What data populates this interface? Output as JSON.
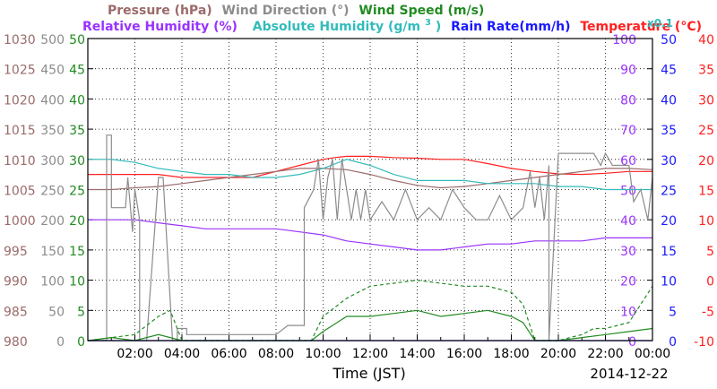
{
  "header": {
    "row1": [
      {
        "text": "Pressure (hPa)",
        "color": "#9c6a6a"
      },
      {
        "text": "Wind Direction (°)",
        "color": "#8c8c8c"
      },
      {
        "text": "Wind Speed (m/s)",
        "color": "#228b22"
      }
    ],
    "row2": [
      {
        "text": "Relative Humidity (%)",
        "color": "#9933ff"
      },
      {
        "text": "Absolute Humidity (g/m",
        "color": "#33bbbb"
      },
      {
        "text": "Rain Rate(mm/h)",
        "color": "#1a1aff"
      },
      {
        "text": "Temperature (°C)",
        "color": "#ff2020"
      }
    ],
    "abs_sup": "3",
    "abs_close": ")",
    "x01": "x0.1"
  },
  "chart_data": {
    "type": "line",
    "xlabel": "Time (JST)",
    "date_label": "2014-12-22",
    "x_ticks": [
      "02:00",
      "04:00",
      "06:00",
      "08:00",
      "10:00",
      "12:00",
      "14:00",
      "16:00",
      "18:00",
      "20:00",
      "22:00",
      "00:00"
    ],
    "xlim": [
      0,
      24
    ],
    "y_axes": [
      {
        "name": "Pressure (hPa)",
        "color": "#9c6a6a",
        "side": "left",
        "ylim": [
          980,
          1030
        ],
        "ticks": [
          "980",
          "985",
          "990",
          "995",
          "1000",
          "1005",
          "1010",
          "1015",
          "1020",
          "1025",
          "1030"
        ]
      },
      {
        "name": "Wind Direction (°)",
        "color": "#8c8c8c",
        "side": "left",
        "ylim": [
          0,
          500
        ],
        "ticks": [
          "0",
          "50",
          "100",
          "150",
          "200",
          "250",
          "300",
          "350",
          "400",
          "450",
          "500"
        ]
      },
      {
        "name": "Wind Speed (m/s)",
        "color": "#228b22",
        "side": "left",
        "ylim": [
          0,
          50
        ],
        "ticks": [
          "0",
          "5",
          "10",
          "15",
          "20",
          "25",
          "30",
          "35",
          "40",
          "45",
          "50"
        ]
      },
      {
        "name": "Relative Humidity (%)",
        "color": "#9933ff",
        "side": "right",
        "ylim": [
          0,
          100
        ],
        "ticks": [
          "0",
          "10",
          "20",
          "30",
          "40",
          "50",
          "60",
          "70",
          "80",
          "90",
          "100"
        ]
      },
      {
        "name": "Rain Rate(mm/h)",
        "color": "#1a1aff",
        "side": "right",
        "ylim": [
          0,
          50
        ],
        "ticks": [
          "0",
          "5",
          "10",
          "15",
          "20",
          "25",
          "30",
          "35",
          "40",
          "45",
          "50"
        ]
      },
      {
        "name": "Temperature (°C)",
        "color": "#ff2020",
        "side": "right",
        "ylim": [
          -10,
          40
        ],
        "ticks": [
          "-10",
          "-5",
          "0",
          "5",
          "10",
          "15",
          "20",
          "25",
          "30",
          "35",
          "40"
        ]
      }
    ],
    "grid": "dotted",
    "series": [
      {
        "name": "Temperature (°C)",
        "color": "#ff2020",
        "axis": 5,
        "style": "solid",
        "x": [
          0,
          1,
          2,
          3,
          4,
          5,
          6,
          7,
          8,
          9,
          10,
          10.5,
          11,
          12,
          13,
          14,
          15,
          16,
          17,
          18,
          19,
          20,
          21,
          22,
          23,
          24
        ],
        "y": [
          17.5,
          17.5,
          17.5,
          17.5,
          17.0,
          17.0,
          17.0,
          17.0,
          18.0,
          19.0,
          20.0,
          20.3,
          20.5,
          20.5,
          20.3,
          20.2,
          20.0,
          20.0,
          19.3,
          18.5,
          18.0,
          17.6,
          17.5,
          17.7,
          18.0,
          18.0
        ]
      },
      {
        "name": "Pressure (hPa)",
        "color": "#9c6a6a",
        "axis": 0,
        "style": "solid",
        "x": [
          0,
          1,
          2,
          3,
          4,
          5,
          6,
          7,
          8,
          9,
          10,
          11,
          12,
          13,
          14,
          15,
          16,
          17,
          18,
          19,
          20,
          21,
          22,
          23,
          24
        ],
        "y": [
          1005.0,
          1005.0,
          1005.3,
          1005.5,
          1006.0,
          1006.5,
          1007.0,
          1007.5,
          1008.0,
          1008.5,
          1008.5,
          1008.3,
          1007.5,
          1006.5,
          1005.7,
          1005.3,
          1005.5,
          1006.0,
          1006.5,
          1007.0,
          1007.5,
          1008.0,
          1008.5,
          1008.5,
          1008.3
        ]
      },
      {
        "name": "Absolute Humidity (g/m3) x0.1",
        "color": "#33bbbb",
        "axis": 3,
        "style": "solid",
        "x": [
          0,
          1,
          2,
          3,
          4,
          5,
          6,
          7,
          8,
          9,
          10,
          11,
          12,
          13,
          14,
          15,
          16,
          17,
          18,
          19,
          20,
          21,
          22,
          23,
          24
        ],
        "y": [
          60,
          60,
          59,
          57,
          56,
          55,
          55,
          54,
          54,
          55,
          57,
          60,
          58,
          55,
          53,
          53,
          53,
          52,
          52,
          52,
          51,
          51,
          50,
          50,
          50
        ]
      },
      {
        "name": "Relative Humidity (%)",
        "color": "#9933ff",
        "axis": 3,
        "style": "solid",
        "x": [
          0,
          1,
          2,
          3,
          4,
          5,
          6,
          7,
          8,
          9,
          10,
          11,
          12,
          13,
          14,
          15,
          16,
          17,
          18,
          19,
          20,
          21,
          22,
          23,
          24
        ],
        "y": [
          40,
          40,
          40,
          39,
          38,
          37,
          37,
          37,
          37,
          36,
          35,
          33,
          32,
          31,
          30,
          30,
          31,
          32,
          32,
          33,
          33,
          33,
          34,
          34,
          34
        ]
      },
      {
        "name": "Wind Direction (°)",
        "color": "#8c8c8c",
        "axis": 1,
        "style": "solid",
        "x": [
          0,
          0.8,
          0.8,
          1.0,
          1.0,
          1.6,
          1.7,
          1.9,
          2.0,
          2.2,
          2.2,
          2.5,
          3.0,
          3.2,
          3.6,
          3.8,
          3.8,
          4.2,
          4.2,
          5.0,
          6.0,
          7.0,
          8.0,
          8.5,
          9.0,
          9.2,
          9.2,
          9.6,
          9.8,
          10.0,
          10.2,
          10.4,
          10.6,
          10.8,
          11.0,
          11.2,
          11.4,
          11.6,
          11.8,
          12.0,
          12.5,
          13.0,
          13.5,
          14.0,
          14.5,
          15.0,
          15.5,
          16.0,
          16.5,
          17.0,
          17.5,
          18.0,
          18.5,
          18.8,
          19.0,
          19.2,
          19.4,
          19.6,
          19.6,
          20.0,
          20.5,
          21.0,
          21.5,
          21.8,
          22.0,
          22.3,
          22.5,
          23.0,
          23.2,
          23.5,
          23.8,
          24.0
        ],
        "y": [
          0,
          0,
          340,
          340,
          220,
          220,
          270,
          180,
          250,
          200,
          0,
          0,
          270,
          270,
          0,
          0,
          20,
          20,
          10,
          10,
          10,
          10,
          10,
          25,
          25,
          25,
          220,
          250,
          300,
          200,
          270,
          300,
          200,
          300,
          250,
          200,
          250,
          200,
          250,
          200,
          230,
          200,
          250,
          200,
          220,
          200,
          250,
          220,
          200,
          200,
          240,
          200,
          220,
          280,
          220,
          270,
          200,
          290,
          0,
          310,
          310,
          310,
          310,
          290,
          310,
          290,
          290,
          290,
          230,
          250,
          200,
          270
        ]
      },
      {
        "name": "Wind Speed (m/s)",
        "color": "#228b22",
        "axis": 2,
        "style": "solid",
        "x": [
          0,
          1,
          2,
          3,
          4,
          5,
          6,
          7,
          8,
          9,
          9.5,
          10,
          11,
          12,
          13,
          14,
          15,
          16,
          17,
          18,
          18.5,
          19,
          20,
          21,
          22,
          23,
          24
        ],
        "y": [
          0,
          0.5,
          0,
          1,
          0,
          0,
          0,
          0,
          0,
          0,
          0,
          1.5,
          4,
          4,
          4.5,
          5,
          4,
          4.5,
          5,
          4,
          3,
          0,
          0,
          0.5,
          1,
          1.5,
          2
        ]
      },
      {
        "name": "Wind Speed gust (m/s)",
        "color": "#228b22",
        "axis": 2,
        "style": "dashed",
        "x": [
          0,
          1,
          2,
          3,
          3.5,
          4,
          5,
          6,
          7,
          8,
          9,
          9.5,
          10,
          11,
          12,
          13,
          14,
          15,
          16,
          17,
          18,
          18.5,
          19,
          20,
          21,
          21.5,
          22,
          23,
          24
        ],
        "y": [
          0,
          0.5,
          1,
          4,
          5,
          0,
          0,
          0,
          0,
          0,
          0,
          0,
          4,
          7,
          9,
          9.5,
          10,
          9.5,
          9,
          9,
          8,
          6,
          0,
          0,
          1,
          2,
          2,
          3,
          9
        ]
      },
      {
        "name": "Rain Rate(mm/h)",
        "color": "#1a1aff",
        "axis": 4,
        "style": "solid",
        "x": [
          0,
          24
        ],
        "y": [
          0,
          0
        ]
      }
    ]
  }
}
